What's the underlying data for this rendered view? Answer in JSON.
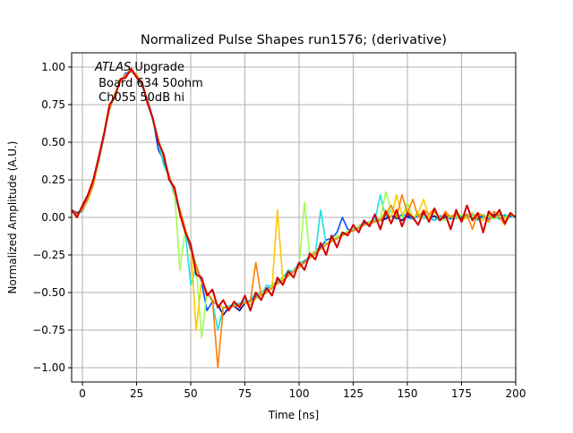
{
  "chart_data": {
    "type": "line",
    "title": "Normalized Pulse Shapes run1576; (derivative)",
    "xlabel": "Time [ns]",
    "ylabel": "Normalized Amplitude (A.U.)",
    "xlim": [
      -5,
      200
    ],
    "ylim": [
      -1.095,
      1.095
    ],
    "grid": true,
    "x_ticks": [
      0,
      25,
      50,
      75,
      100,
      125,
      150,
      175,
      200
    ],
    "x_tick_labels": [
      "0",
      "25",
      "50",
      "75",
      "100",
      "125",
      "150",
      "175",
      "200"
    ],
    "y_ticks": [
      -1.0,
      -0.75,
      -0.5,
      -0.25,
      0.0,
      0.25,
      0.5,
      0.75,
      1.0
    ],
    "y_tick_labels": [
      "−1.00",
      "−0.75",
      "−0.50",
      "−0.25",
      "0.00",
      "0.25",
      "0.50",
      "0.75",
      "1.00"
    ],
    "annotation": {
      "italic": "ATLAS",
      "rest": " Upgrade",
      "line2": " Board 634 50ohm",
      "line3": " Ch055 50dB hi"
    },
    "x_start": -5,
    "x_step": 2.5,
    "series": [
      {
        "color": "#00008f",
        "values": [
          0.05,
          0.03,
          0.05,
          0.12,
          0.22,
          0.38,
          0.55,
          0.72,
          0.82,
          0.9,
          0.95,
          0.97,
          0.95,
          0.88,
          0.78,
          0.65,
          0.52,
          0.4,
          0.28,
          0.17,
          0.05,
          -0.08,
          -0.2,
          -0.32,
          -0.42,
          -0.5,
          -0.55,
          -0.58,
          -0.65,
          -0.6,
          -0.59,
          -0.62,
          -0.57,
          -0.56,
          -0.54,
          -0.52,
          -0.5,
          -0.47,
          -0.44,
          -0.42,
          -0.39,
          -0.36,
          -0.33,
          -0.3,
          -0.27,
          -0.24,
          -0.21,
          -0.18,
          -0.16,
          -0.14,
          -0.12,
          -0.1,
          -0.09,
          -0.07,
          -0.05,
          -0.04,
          -0.03,
          -0.02,
          -0.01,
          0.01,
          0.0,
          -0.02,
          0.01,
          0.0,
          0.02,
          -0.01,
          0.0,
          0.01,
          -0.02,
          0.0,
          0.01,
          0.0,
          -0.01,
          0.02,
          0.0,
          -0.01,
          0.01,
          0.0,
          0.02,
          -0.01,
          0.0,
          0.01,
          0.0
        ]
      },
      {
        "color": "#0050ff",
        "values": [
          0.04,
          0.02,
          0.06,
          0.13,
          0.23,
          0.37,
          0.54,
          0.73,
          0.83,
          0.9,
          0.96,
          0.97,
          0.94,
          0.87,
          0.79,
          0.66,
          0.45,
          0.38,
          0.27,
          0.16,
          0.04,
          -0.09,
          -0.22,
          -0.33,
          -0.43,
          -0.62,
          -0.56,
          -0.58,
          -0.6,
          -0.6,
          -0.59,
          -0.58,
          -0.56,
          -0.55,
          -0.53,
          -0.5,
          -0.48,
          -0.45,
          -0.43,
          -0.4,
          -0.37,
          -0.35,
          -0.31,
          -0.29,
          -0.26,
          -0.22,
          -0.2,
          -0.15,
          -0.14,
          -0.1,
          0.0,
          -0.08,
          -0.09,
          -0.06,
          -0.04,
          -0.03,
          -0.02,
          -0.01,
          0.0,
          0.01,
          -0.01,
          0.02,
          0.0,
          -0.01,
          0.01,
          0.02,
          0.0,
          -0.02,
          0.01,
          0.0,
          -0.01,
          0.01,
          0.0,
          0.02,
          -0.01,
          0.0,
          0.01,
          -0.01,
          0.0,
          0.02,
          0.01,
          0.0,
          0.01
        ]
      },
      {
        "color": "#20e0e0",
        "values": [
          0.05,
          0.02,
          0.04,
          0.12,
          0.21,
          0.39,
          0.56,
          0.71,
          0.82,
          0.91,
          0.95,
          0.98,
          0.95,
          0.88,
          0.77,
          0.64,
          0.5,
          0.35,
          0.27,
          0.15,
          0.03,
          -0.1,
          -0.45,
          -0.33,
          -0.42,
          -0.5,
          -0.56,
          -0.75,
          -0.6,
          -0.59,
          -0.58,
          -0.57,
          -0.56,
          -0.55,
          -0.5,
          -0.52,
          -0.45,
          -0.47,
          -0.42,
          -0.4,
          -0.35,
          -0.36,
          -0.3,
          -0.3,
          -0.25,
          -0.24,
          0.05,
          -0.18,
          -0.15,
          -0.14,
          -0.1,
          -0.1,
          -0.08,
          -0.07,
          -0.05,
          -0.04,
          -0.02,
          0.15,
          0.0,
          0.05,
          0.02,
          0.0,
          0.03,
          -0.01,
          0.02,
          0.0,
          0.01,
          -0.02,
          0.0,
          0.02,
          0.0,
          -0.01,
          0.01,
          0.0,
          0.02,
          -0.02,
          0.0,
          0.01,
          0.0,
          -0.01,
          0.02,
          0.0,
          0.01
        ]
      },
      {
        "color": "#a0ff50",
        "values": [
          0.05,
          0.02,
          0.05,
          0.11,
          0.22,
          0.38,
          0.55,
          0.72,
          0.83,
          0.9,
          0.94,
          0.97,
          0.95,
          0.89,
          0.78,
          0.65,
          0.52,
          0.4,
          0.28,
          0.17,
          -0.35,
          -0.08,
          -0.2,
          -0.32,
          -0.8,
          -0.5,
          -0.55,
          -0.58,
          -0.6,
          -0.6,
          -0.59,
          -0.58,
          -0.57,
          -0.56,
          -0.54,
          -0.5,
          -0.5,
          -0.45,
          -0.44,
          -0.4,
          -0.39,
          -0.35,
          -0.33,
          0.1,
          -0.27,
          -0.22,
          -0.21,
          -0.17,
          -0.16,
          -0.12,
          -0.12,
          -0.09,
          -0.09,
          -0.06,
          -0.05,
          -0.03,
          -0.03,
          -0.01,
          0.17,
          0.05,
          0.02,
          0.0,
          0.1,
          0.0,
          0.02,
          -0.01,
          0.0,
          0.03,
          0.0,
          -0.02,
          0.01,
          0.0,
          0.02,
          -0.01,
          0.0,
          0.01,
          0.02,
          0.0,
          -0.01,
          0.01,
          0.0,
          0.02,
          0.0
        ]
      },
      {
        "color": "#ffc800",
        "values": [
          0.05,
          0.02,
          0.05,
          0.12,
          0.22,
          0.38,
          0.56,
          0.72,
          0.82,
          0.9,
          0.95,
          0.97,
          0.95,
          0.88,
          0.78,
          0.65,
          0.52,
          0.4,
          0.28,
          0.17,
          0.05,
          -0.08,
          -0.2,
          -0.75,
          -0.42,
          -0.5,
          -0.55,
          -0.58,
          -0.6,
          -0.6,
          -0.59,
          -0.58,
          -0.57,
          -0.58,
          -0.54,
          -0.52,
          -0.5,
          -0.47,
          0.05,
          -0.42,
          -0.39,
          -0.36,
          -0.33,
          -0.3,
          -0.27,
          -0.24,
          -0.21,
          -0.18,
          -0.16,
          -0.14,
          -0.12,
          -0.1,
          -0.09,
          -0.07,
          -0.05,
          -0.04,
          -0.03,
          -0.02,
          0.05,
          0.0,
          0.15,
          0.02,
          0.05,
          0.0,
          0.03,
          0.12,
          0.0,
          0.04,
          -0.02,
          0.03,
          0.0,
          0.02,
          -0.03,
          0.01,
          0.03,
          0.0,
          -0.02,
          0.02,
          0.0,
          0.03,
          -0.01,
          0.02,
          0.0
        ]
      },
      {
        "color": "#ff7f00",
        "values": [
          0.05,
          0.02,
          0.05,
          0.12,
          0.22,
          0.38,
          0.55,
          0.72,
          0.82,
          0.9,
          0.95,
          0.97,
          0.95,
          0.88,
          0.78,
          0.65,
          0.52,
          0.4,
          0.28,
          0.17,
          0.05,
          -0.08,
          -0.2,
          -0.32,
          -0.42,
          -0.5,
          -0.55,
          -1.0,
          -0.6,
          -0.6,
          -0.59,
          -0.58,
          -0.57,
          -0.56,
          -0.3,
          -0.52,
          -0.5,
          -0.47,
          -0.44,
          -0.42,
          -0.39,
          -0.36,
          -0.33,
          -0.3,
          -0.27,
          -0.24,
          -0.21,
          -0.18,
          -0.16,
          -0.14,
          -0.12,
          -0.1,
          -0.09,
          -0.07,
          -0.05,
          -0.04,
          -0.03,
          -0.02,
          0.02,
          0.08,
          0.0,
          0.15,
          0.03,
          0.12,
          0.0,
          0.05,
          0.02,
          0.06,
          -0.02,
          0.04,
          0.0,
          0.03,
          -0.02,
          0.02,
          -0.08,
          0.03,
          0.01,
          -0.03,
          0.04,
          0.0,
          -0.05,
          0.03,
          0.0
        ]
      },
      {
        "color": "#d00000",
        "values": [
          0.05,
          0.0,
          0.08,
          0.15,
          0.25,
          0.4,
          0.56,
          0.75,
          0.8,
          0.92,
          0.93,
          0.99,
          0.93,
          0.9,
          0.76,
          0.66,
          0.5,
          0.42,
          0.25,
          0.2,
          0.02,
          -0.1,
          -0.18,
          -0.38,
          -0.4,
          -0.52,
          -0.48,
          -0.6,
          -0.55,
          -0.62,
          -0.56,
          -0.6,
          -0.52,
          -0.62,
          -0.5,
          -0.55,
          -0.47,
          -0.52,
          -0.4,
          -0.45,
          -0.36,
          -0.4,
          -0.3,
          -0.35,
          -0.24,
          -0.28,
          -0.17,
          -0.25,
          -0.12,
          -0.2,
          -0.1,
          -0.12,
          -0.05,
          -0.1,
          -0.02,
          -0.06,
          0.02,
          -0.08,
          0.04,
          -0.04,
          0.05,
          -0.06,
          0.03,
          0.0,
          -0.05,
          0.04,
          -0.03,
          0.06,
          -0.02,
          0.02,
          -0.08,
          0.05,
          -0.03,
          0.08,
          -0.02,
          0.03,
          -0.1,
          0.04,
          0.0,
          0.05,
          -0.04,
          0.03,
          0.0
        ]
      }
    ]
  }
}
